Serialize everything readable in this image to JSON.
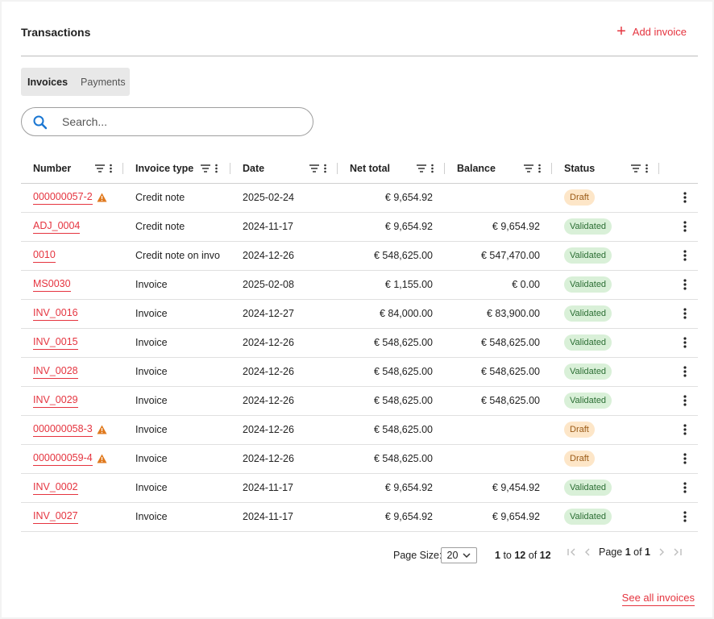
{
  "header": {
    "title": "Transactions",
    "add_label": "Add invoice"
  },
  "tabs": [
    {
      "label": "Invoices"
    },
    {
      "label": "Payments"
    }
  ],
  "search": {
    "placeholder": "Search...",
    "value": ""
  },
  "columns": [
    "Number",
    "Invoice type",
    "Date",
    "Net total",
    "Balance",
    "Status"
  ],
  "rows": [
    {
      "number": "000000057-2",
      "warning": true,
      "type": "Credit note",
      "date": "2025-02-24",
      "net": "€ 9,654.92",
      "balance": "",
      "status": "Draft"
    },
    {
      "number": "ADJ_0004",
      "warning": false,
      "type": "Credit note",
      "date": "2024-11-17",
      "net": "€ 9,654.92",
      "balance": "€ 9,654.92",
      "status": "Validated"
    },
    {
      "number": "0010",
      "warning": false,
      "type": "Credit note on invo",
      "date": "2024-12-26",
      "net": "€ 548,625.00",
      "balance": "€ 547,470.00",
      "status": "Validated"
    },
    {
      "number": "MS0030",
      "warning": false,
      "type": "Invoice",
      "date": "2025-02-08",
      "net": "€ 1,155.00",
      "balance": "€ 0.00",
      "status": "Validated"
    },
    {
      "number": "INV_0016",
      "warning": false,
      "type": "Invoice",
      "date": "2024-12-27",
      "net": "€ 84,000.00",
      "balance": "€ 83,900.00",
      "status": "Validated"
    },
    {
      "number": "INV_0015",
      "warning": false,
      "type": "Invoice",
      "date": "2024-12-26",
      "net": "€ 548,625.00",
      "balance": "€ 548,625.00",
      "status": "Validated"
    },
    {
      "number": "INV_0028",
      "warning": false,
      "type": "Invoice",
      "date": "2024-12-26",
      "net": "€ 548,625.00",
      "balance": "€ 548,625.00",
      "status": "Validated"
    },
    {
      "number": "INV_0029",
      "warning": false,
      "type": "Invoice",
      "date": "2024-12-26",
      "net": "€ 548,625.00",
      "balance": "€ 548,625.00",
      "status": "Validated"
    },
    {
      "number": "000000058-3",
      "warning": true,
      "type": "Invoice",
      "date": "2024-12-26",
      "net": "€ 548,625.00",
      "balance": "",
      "status": "Draft"
    },
    {
      "number": "000000059-4",
      "warning": true,
      "type": "Invoice",
      "date": "2024-12-26",
      "net": "€ 548,625.00",
      "balance": "",
      "status": "Draft"
    },
    {
      "number": "INV_0002",
      "warning": false,
      "type": "Invoice",
      "date": "2024-11-17",
      "net": "€ 9,654.92",
      "balance": "€ 9,454.92",
      "status": "Validated"
    },
    {
      "number": "INV_0027",
      "warning": false,
      "type": "Invoice",
      "date": "2024-11-17",
      "net": "€ 9,654.92",
      "balance": "€ 9,654.92",
      "status": "Validated"
    }
  ],
  "pagination": {
    "page_size_label": "Page Size:",
    "page_size": "20",
    "range_start": "1",
    "range_to": "to",
    "range_end": "12",
    "range_of": "of",
    "total_rows": "12",
    "page_label": "Page",
    "page_current": "1",
    "page_of": "of",
    "page_total": "1"
  },
  "footer": {
    "see_all_label": "See all invoices"
  },
  "colors": {
    "accent": "#e5343f",
    "draft_bg": "#fde6c8",
    "validated_bg": "#d9f0d8",
    "warning": "#e07a1f"
  }
}
